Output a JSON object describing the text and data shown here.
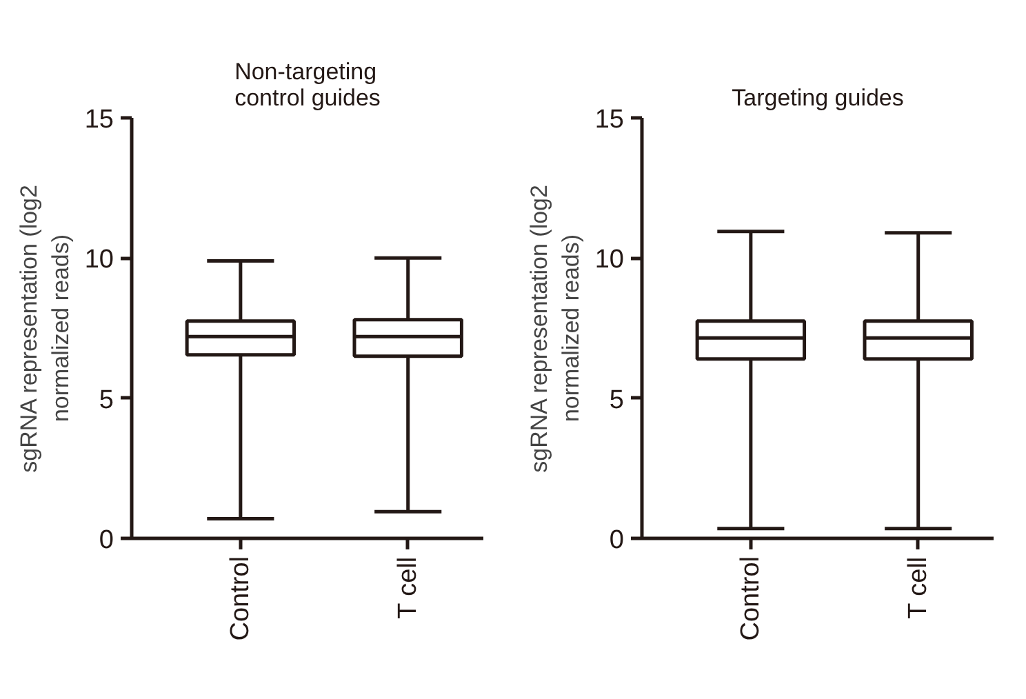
{
  "chart_data": [
    {
      "type": "box",
      "title": "Non-targeting control guides",
      "ylabel": "sgRNA representation (log2 normalized reads)",
      "categories": [
        "Control",
        "T cell"
      ],
      "ylim": [
        0,
        15
      ],
      "yticks": [
        0,
        5,
        10,
        15
      ],
      "grid": false,
      "series": [
        {
          "color": "#231815",
          "boxes": [
            {
              "low": 0.7,
              "q1": 6.55,
              "median": 7.2,
              "q3": 7.75,
              "high": 9.9
            },
            {
              "low": 0.95,
              "q1": 6.5,
              "median": 7.2,
              "q3": 7.8,
              "high": 10.0
            }
          ]
        }
      ]
    },
    {
      "type": "box",
      "title": "Targeting guides",
      "ylabel": "sgRNA representation (log2 normalized reads)",
      "categories": [
        "Control",
        "T cell"
      ],
      "ylim": [
        0,
        15
      ],
      "yticks": [
        0,
        5,
        10,
        15
      ],
      "grid": false,
      "series": [
        {
          "color": "#231815",
          "boxes": [
            {
              "low": 0.35,
              "q1": 6.4,
              "median": 7.15,
              "q3": 7.75,
              "high": 10.95
            },
            {
              "low": 0.35,
              "q1": 6.4,
              "median": 7.15,
              "q3": 7.75,
              "high": 10.9
            }
          ]
        }
      ]
    }
  ]
}
